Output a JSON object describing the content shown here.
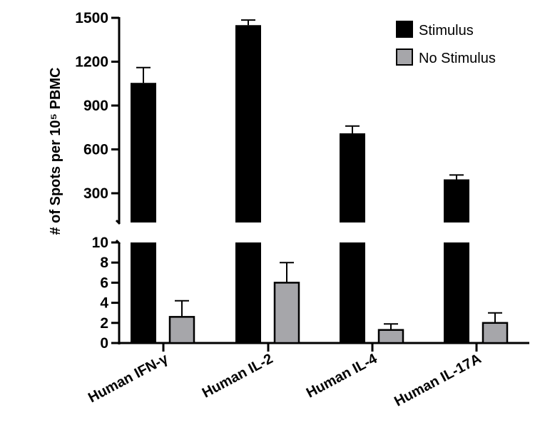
{
  "chart_data": {
    "type": "bar",
    "title": "",
    "xlabel": "",
    "ylabel": "# of Spots per 10⁵ PBMC",
    "y_axis_broken": true,
    "ylim_lower": [
      0,
      10
    ],
    "ylim_upper": [
      100,
      1500
    ],
    "yticks_lower": [
      "0",
      "2",
      "4",
      "6",
      "8",
      "10"
    ],
    "yticks_upper": [
      "300",
      "600",
      "900",
      "1200",
      "1500"
    ],
    "categories": [
      "Human IFN-γ",
      "Human IL-2",
      "Human IL-4",
      "Human IL-17A"
    ],
    "legend_position": "top-right",
    "grid": false,
    "series": [
      {
        "name": "Stimulus",
        "color": "#000000",
        "values": [
          1055,
          1450,
          710,
          395
        ],
        "error_upper": [
          1160,
          1485,
          760,
          425
        ]
      },
      {
        "name": "No Stimulus",
        "color": "#a6a6aa",
        "values": [
          2.6,
          6.0,
          1.3,
          2.0
        ],
        "error_upper": [
          4.2,
          8.0,
          1.9,
          3.0
        ]
      }
    ]
  }
}
